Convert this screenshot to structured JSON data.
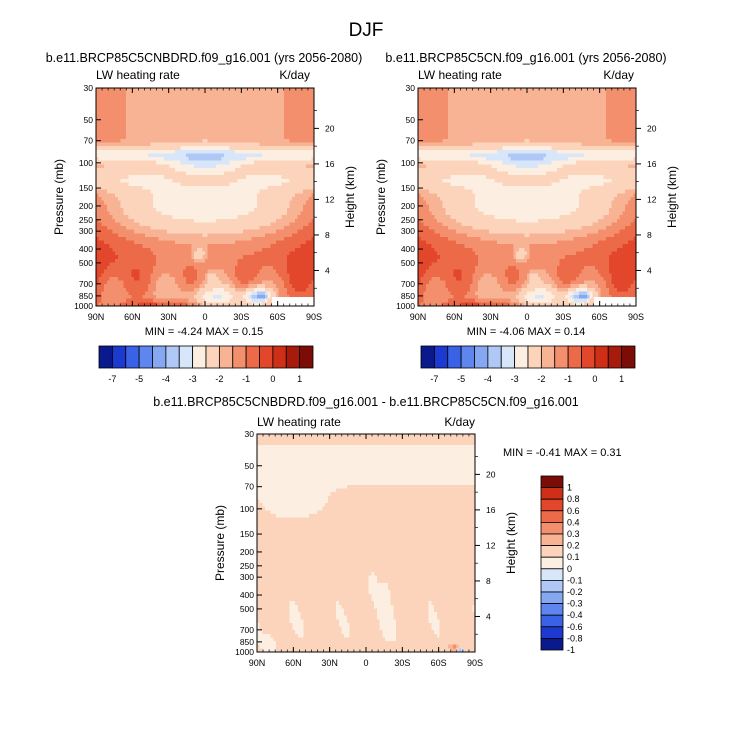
{
  "figure_title": "DJF",
  "panels": [
    {
      "id": "a",
      "title": "b.e11.BRCP85C5CNBDRD.f09_g16.001 (yrs 2056-2080)",
      "left_label": "LW heating rate",
      "right_label": "K/day",
      "ylabel": "Pressure (mb)",
      "ylabel_right": "Height (km)",
      "stats": "MIN =  -4.24   MAX =  0.15"
    },
    {
      "id": "b",
      "title": "b.e11.BRCP85C5CN.f09_g16.001 (yrs 2056-2080)",
      "left_label": "LW heating rate",
      "right_label": "K/day",
      "ylabel": "Pressure (mb)",
      "ylabel_right": "Height (km)",
      "stats": "MIN =  -4.06   MAX =  0.14"
    },
    {
      "id": "c",
      "title": "b.e11.BRCP85C5CNBDRD.f09_g16.001 - b.e11.BRCP85C5CN.f09_g16.001",
      "left_label": "LW heating rate",
      "right_label": "K/day",
      "ylabel": "Pressure (mb)",
      "ylabel_right": "Height (km)",
      "stats": "MIN =  -0.41   MAX =  0.31"
    }
  ],
  "axes": {
    "x_ticks": [
      "90N",
      "60N",
      "30N",
      "0",
      "30S",
      "60S",
      "90S"
    ],
    "pressure_ticks": [
      "30",
      "50",
      "70",
      "100",
      "150",
      "200",
      "250",
      "300",
      "400",
      "500",
      "700",
      "850",
      "1000"
    ],
    "height_ticks": [
      "20",
      "16",
      "12",
      "8",
      "4"
    ]
  },
  "colorbar_main": {
    "colors": [
      "#0a1a8c",
      "#1c3ad0",
      "#3a62e6",
      "#5e86ee",
      "#86a8f2",
      "#b0c8f6",
      "#d8e6fa",
      "#fdeee2",
      "#fcd4bc",
      "#f8b394",
      "#f38f6c",
      "#ec6a48",
      "#e2472c",
      "#cf2f16",
      "#a81a0c",
      "#7c0c06"
    ],
    "labels": [
      "-7",
      "-5",
      "-4",
      "-3",
      "-2",
      "-1",
      "0",
      "1"
    ]
  },
  "colorbar_diff": {
    "colors": [
      "#0a1a8c",
      "#1c3ad0",
      "#3a62e6",
      "#5e86ee",
      "#86a8f2",
      "#b0c8f6",
      "#d8e6fa",
      "#fdeee2",
      "#fcd4bc",
      "#f8b394",
      "#f38f6c",
      "#ec6a48",
      "#e2472c",
      "#cf2f16",
      "#7c0c06"
    ],
    "labels": [
      "-1",
      "-0.8",
      "-0.6",
      "-0.4",
      "-0.3",
      "-0.2",
      "-0.1",
      "0",
      "0.1",
      "0.2",
      "0.3",
      "0.4",
      "0.6",
      "0.8",
      "1"
    ]
  },
  "chart_data": [
    {
      "type": "heatmap",
      "title": "b.e11.BRCP85C5CNBDRD.f09_g16.001 (yrs 2056-2080)",
      "xlabel": "",
      "ylabel": "Pressure (mb)",
      "y2label": "Height (km)",
      "x_range": [
        "90N",
        "90S"
      ],
      "y_range_mb": [
        1000,
        30
      ],
      "units": "K/day",
      "min": -4.24,
      "max": 0.15
    },
    {
      "type": "heatmap",
      "title": "b.e11.BRCP85C5CN.f09_g16.001 (yrs 2056-2080)",
      "xlabel": "",
      "ylabel": "Pressure (mb)",
      "y2label": "Height (km)",
      "x_range": [
        "90N",
        "90S"
      ],
      "y_range_mb": [
        1000,
        30
      ],
      "units": "K/day",
      "min": -4.06,
      "max": 0.14
    },
    {
      "type": "heatmap",
      "title": "b.e11.BRCP85C5CNBDRD.f09_g16.001 - b.e11.BRCP85C5CN.f09_g16.001",
      "xlabel": "",
      "ylabel": "Pressure (mb)",
      "y2label": "Height (km)",
      "x_range": [
        "90N",
        "90S"
      ],
      "y_range_mb": [
        1000,
        30
      ],
      "units": "K/day",
      "min": -0.41,
      "max": 0.31
    }
  ]
}
